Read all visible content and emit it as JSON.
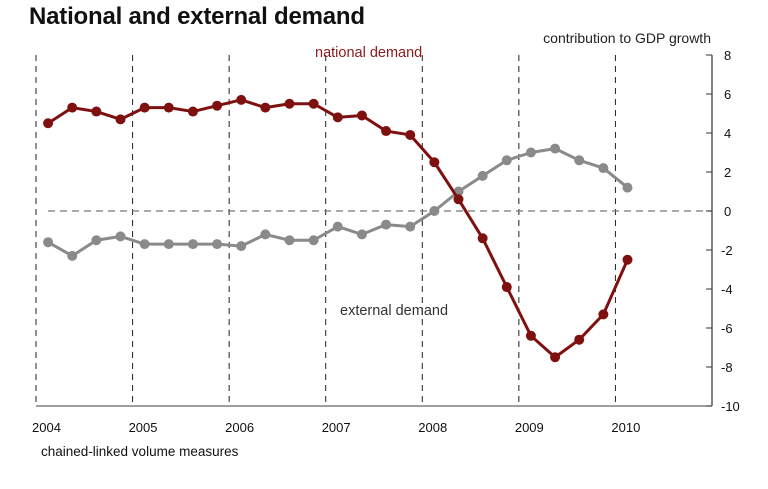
{
  "title": "National and external demand",
  "note": "chained-linked volume measures",
  "chart_data": {
    "type": "line",
    "title": "National and external demand",
    "ylabel": "contribution to GDP growth",
    "xlabel": "",
    "xlim": [
      2004,
      2011
    ],
    "ylim": [
      -10,
      8
    ],
    "yticks": [
      8,
      6,
      4,
      2,
      0,
      -2,
      -4,
      -6,
      -8,
      -10
    ],
    "xticks": [
      2004,
      2005,
      2006,
      2007,
      2008,
      2009,
      2010
    ],
    "xtick_labels": [
      "2004",
      "2005",
      "2006",
      "2007",
      "2008",
      "2009",
      "2010"
    ],
    "grid": "vertical dashed lines at year boundaries; dashed horizontal zero line",
    "y_axis_side": "right",
    "x": [
      2004.125,
      2004.375,
      2004.625,
      2004.875,
      2005.125,
      2005.375,
      2005.625,
      2005.875,
      2006.125,
      2006.375,
      2006.625,
      2006.875,
      2007.125,
      2007.375,
      2007.625,
      2007.875,
      2008.125,
      2008.375,
      2008.625,
      2008.875,
      2009.125,
      2009.375,
      2009.625,
      2009.875,
      2010.125
    ],
    "series": [
      {
        "name": "national demand",
        "color": "#7f1010",
        "values": [
          4.5,
          5.3,
          5.1,
          4.7,
          5.3,
          5.3,
          5.1,
          5.4,
          5.7,
          5.3,
          5.5,
          5.5,
          4.8,
          4.9,
          4.1,
          3.9,
          2.5,
          0.6,
          -1.4,
          -3.9,
          -6.4,
          -7.5,
          -6.6,
          -5.3,
          -2.5
        ]
      },
      {
        "name": "external demand",
        "color": "#8a8a8a",
        "values": [
          -1.6,
          -2.3,
          -1.5,
          -1.3,
          -1.7,
          -1.7,
          -1.7,
          -1.7,
          -1.8,
          -1.2,
          -1.5,
          -1.5,
          -0.8,
          -1.2,
          -0.7,
          -0.8,
          0.0,
          1.0,
          1.8,
          2.6,
          3.0,
          3.2,
          2.6,
          2.2,
          1.2
        ]
      }
    ],
    "annotations": [
      {
        "text": "national demand",
        "series": "national demand",
        "placement": "top-center"
      },
      {
        "text": "external demand",
        "series": "external demand",
        "placement": "lower-center"
      }
    ]
  }
}
